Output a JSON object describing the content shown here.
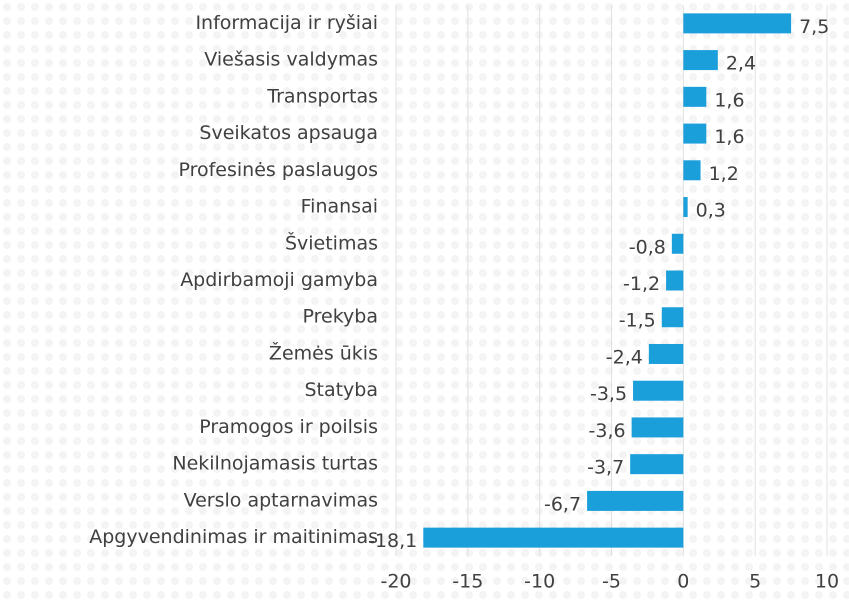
{
  "chart_data": {
    "type": "bar",
    "orientation": "horizontal",
    "categories": [
      "Informacija ir ryšiai",
      "Viešasis valdymas",
      "Transportas",
      "Sveikatos apsauga",
      "Profesinės paslaugos",
      "Finansai",
      "Švietimas",
      "Apdirbamoji gamyba",
      "Prekyba",
      "Žemės ūkis",
      "Statyba",
      "Pramogos ir poilsis",
      "Nekilnojamasis turtas",
      "Verslo aptarnavimas",
      "Apgyvendinimas ir maitinimas"
    ],
    "values": [
      7.5,
      2.4,
      1.6,
      1.6,
      1.2,
      0.3,
      -0.8,
      -1.2,
      -1.5,
      -2.4,
      -3.5,
      -3.6,
      -3.7,
      -6.7,
      -18.1
    ],
    "value_labels": [
      "7,5",
      "2,4",
      "1,6",
      "1,6",
      "1,2",
      "0,3",
      "-0,8",
      "-1,2",
      "-1,5",
      "-2,4",
      "-3,5",
      "-3,6",
      "-3,7",
      "-6,7",
      "-18,1"
    ],
    "color": "#1a9fdb",
    "xlim": [
      -20,
      10
    ],
    "xticks": [
      -20,
      -15,
      -10,
      -5,
      0,
      5,
      10
    ],
    "grid": true
  }
}
